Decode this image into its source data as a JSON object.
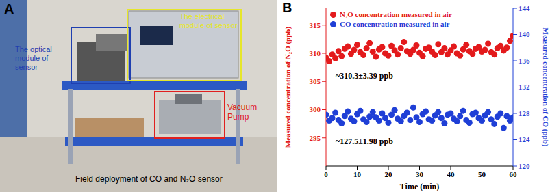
{
  "photo": {
    "label": "A",
    "regions": [
      {
        "text": "The optical module of sensor",
        "color": "#1f3fb0"
      },
      {
        "text": "The electrical module of sensor",
        "color": "#e6e62a"
      },
      {
        "text": "Vacuum Pump",
        "color": "#e0201f"
      }
    ],
    "caption": "Field deployment of CO and N₂O sensor"
  },
  "chart_data": {
    "type": "scatter",
    "title": "B",
    "x_label": "Time (min)",
    "y_label": "Measured concentration of N₂O (ppb)",
    "y2_label": "Measured concentration of CO (ppb)",
    "xlim": [
      0,
      60
    ],
    "xticks": [
      0,
      10,
      20,
      30,
      40,
      50,
      60
    ],
    "ylim": [
      290,
      318
    ],
    "yticks": [
      295,
      300,
      305,
      310,
      315
    ],
    "y2lim": [
      120,
      144
    ],
    "y2ticks": [
      120,
      124,
      128,
      132,
      136,
      140,
      144
    ],
    "legend": "upper left",
    "grid": false,
    "annotations": [
      "~310.3±3.39 ppb",
      "~127.5±1.98 ppb"
    ],
    "x": [
      0,
      1,
      2,
      3,
      4,
      5,
      6,
      7,
      8,
      9,
      10,
      11,
      12,
      13,
      14,
      15,
      16,
      17,
      18,
      19,
      20,
      21,
      22,
      23,
      24,
      25,
      26,
      27,
      28,
      29,
      30,
      31,
      32,
      33,
      34,
      35,
      36,
      37,
      38,
      39,
      40,
      41,
      42,
      43,
      44,
      45,
      46,
      47,
      48,
      49,
      50,
      51,
      52,
      53,
      54,
      55,
      56,
      57,
      58,
      59,
      60
    ],
    "series": [
      {
        "name": "N₂O concentration measured in air",
        "color": "#e31a1c",
        "marker": "circle",
        "values": [
          309.2,
          308.6,
          309.8,
          309.1,
          310.4,
          309.5,
          310.8,
          311.2,
          309.9,
          310.6,
          311.5,
          310.2,
          309.7,
          310.9,
          311.8,
          310.3,
          309.4,
          310.7,
          311.1,
          310.0,
          309.6,
          311.3,
          310.5,
          309.8,
          310.9,
          312.0,
          310.4,
          309.9,
          310.6,
          311.4,
          310.1,
          309.5,
          310.8,
          311.0,
          310.3,
          309.7,
          311.6,
          310.2,
          310.9,
          309.8,
          310.5,
          311.2,
          310.0,
          309.6,
          310.7,
          311.5,
          310.4,
          309.9,
          310.8,
          311.1,
          310.3,
          310.6,
          311.7,
          310.2,
          309.8,
          310.9,
          311.3,
          310.5,
          311.0,
          312.2,
          313.1
        ]
      },
      {
        "name": "CO concentration measured in air",
        "color": "#1f3fd6",
        "marker": "circle",
        "axis": "y2",
        "values": [
          127.8,
          126.9,
          127.3,
          128.1,
          127.0,
          126.5,
          127.6,
          128.3,
          127.2,
          126.8,
          127.9,
          128.4,
          127.1,
          126.7,
          127.5,
          128.2,
          127.4,
          126.9,
          128.0,
          127.3,
          126.6,
          127.8,
          128.5,
          127.2,
          126.8,
          127.6,
          128.1,
          127.0,
          128.9,
          127.4,
          126.7,
          127.9,
          128.3,
          127.1,
          126.9,
          127.7,
          128.2,
          127.3,
          126.5,
          127.8,
          128.0,
          127.2,
          126.8,
          127.6,
          128.4,
          127.0,
          126.6,
          127.9,
          128.1,
          127.3,
          126.9,
          127.7,
          128.2,
          127.1,
          126.4,
          127.5,
          128.0,
          125.8,
          127.6,
          126.9,
          127.4
        ]
      }
    ]
  }
}
